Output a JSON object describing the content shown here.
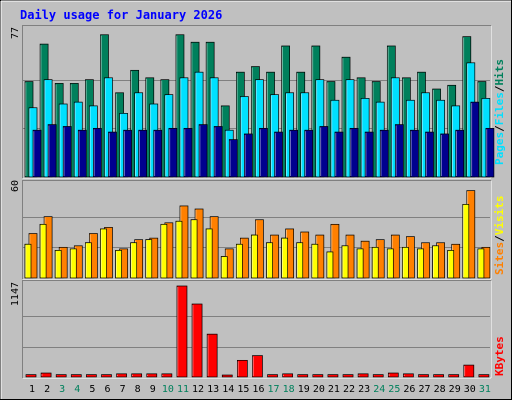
{
  "colors": {
    "background": "#c0c0c0",
    "panel": "#c0c0c0",
    "title": "#0000ff",
    "hits": "#00805c",
    "files": "#00e0ff",
    "pages": "#00008f",
    "visits": "#ff8000",
    "sites": "#ffff00",
    "kbytes": "#ff0000",
    "day_normal": "#000000",
    "day_weekend": "#00805c"
  },
  "chart_data": [
    {
      "type": "bar",
      "title": "Daily usage for January 2026",
      "ylabel_scale": "77",
      "legend": [
        "Pages",
        "/",
        "Files",
        "/",
        "Hits"
      ],
      "categories": [
        "1",
        "2",
        "3",
        "4",
        "5",
        "6",
        "7",
        "8",
        "9",
        "10",
        "11",
        "12",
        "13",
        "14",
        "15",
        "16",
        "17",
        "18",
        "19",
        "20",
        "21",
        "22",
        "23",
        "24",
        "25",
        "26",
        "27",
        "28",
        "29",
        "30",
        "31"
      ],
      "weekend_days": [
        "3",
        "4",
        "10",
        "11",
        "17",
        "18",
        "24",
        "25",
        "31"
      ],
      "series": [
        {
          "name": "Hits",
          "values": [
            51,
            71,
            50,
            50,
            52,
            76,
            45,
            57,
            53,
            52,
            76,
            72,
            72,
            38,
            56,
            59,
            56,
            70,
            56,
            70,
            51,
            64,
            53,
            51,
            70,
            53,
            56,
            47,
            49,
            75,
            51
          ]
        },
        {
          "name": "Files",
          "values": [
            37,
            52,
            39,
            40,
            38,
            53,
            34,
            45,
            39,
            44,
            53,
            56,
            53,
            25,
            43,
            52,
            44,
            45,
            45,
            52,
            41,
            52,
            42,
            40,
            53,
            41,
            45,
            41,
            38,
            61,
            42
          ]
        },
        {
          "name": "Pages",
          "values": [
            25,
            28,
            27,
            25,
            26,
            24,
            25,
            25,
            25,
            26,
            26,
            28,
            27,
            20,
            23,
            26,
            24,
            25,
            25,
            27,
            24,
            26,
            24,
            25,
            28,
            25,
            24,
            23,
            25,
            40,
            26
          ]
        }
      ]
    },
    {
      "type": "bar",
      "ylabel_scale": "60",
      "legend": [
        "Sites",
        "/",
        "Visits"
      ],
      "categories": [
        "1",
        "2",
        "3",
        "4",
        "5",
        "6",
        "7",
        "8",
        "9",
        "10",
        "11",
        "12",
        "13",
        "14",
        "15",
        "16",
        "17",
        "18",
        "19",
        "20",
        "21",
        "22",
        "23",
        "24",
        "25",
        "26",
        "27",
        "28",
        "29",
        "30",
        "31"
      ],
      "series": [
        {
          "name": "Sites",
          "values": [
            22,
            35,
            18,
            19,
            23,
            32,
            18,
            23,
            25,
            35,
            37,
            38,
            32,
            14,
            22,
            28,
            23,
            26,
            23,
            22,
            17,
            21,
            19,
            20,
            19,
            20,
            19,
            21,
            18,
            48,
            19
          ]
        },
        {
          "name": "Visits",
          "values": [
            29,
            40,
            20,
            21,
            29,
            33,
            19,
            25,
            26,
            36,
            47,
            45,
            40,
            19,
            26,
            38,
            28,
            32,
            30,
            28,
            35,
            28,
            24,
            25,
            28,
            27,
            23,
            23,
            22,
            57,
            20
          ]
        }
      ]
    },
    {
      "type": "bar",
      "ylabel_scale": "1147",
      "legend": [
        "KBytes"
      ],
      "categories": [
        "1",
        "2",
        "3",
        "4",
        "5",
        "6",
        "7",
        "8",
        "9",
        "10",
        "11",
        "12",
        "13",
        "14",
        "15",
        "16",
        "17",
        "18",
        "19",
        "20",
        "21",
        "22",
        "23",
        "24",
        "25",
        "26",
        "27",
        "28",
        "29",
        "30",
        "31"
      ],
      "series": [
        {
          "name": "KBytes",
          "values": [
            30,
            50,
            30,
            30,
            30,
            30,
            40,
            40,
            40,
            40,
            1147,
            920,
            540,
            25,
            210,
            270,
            30,
            40,
            30,
            30,
            30,
            30,
            40,
            30,
            50,
            40,
            30,
            30,
            30,
            150,
            30
          ]
        }
      ]
    }
  ]
}
